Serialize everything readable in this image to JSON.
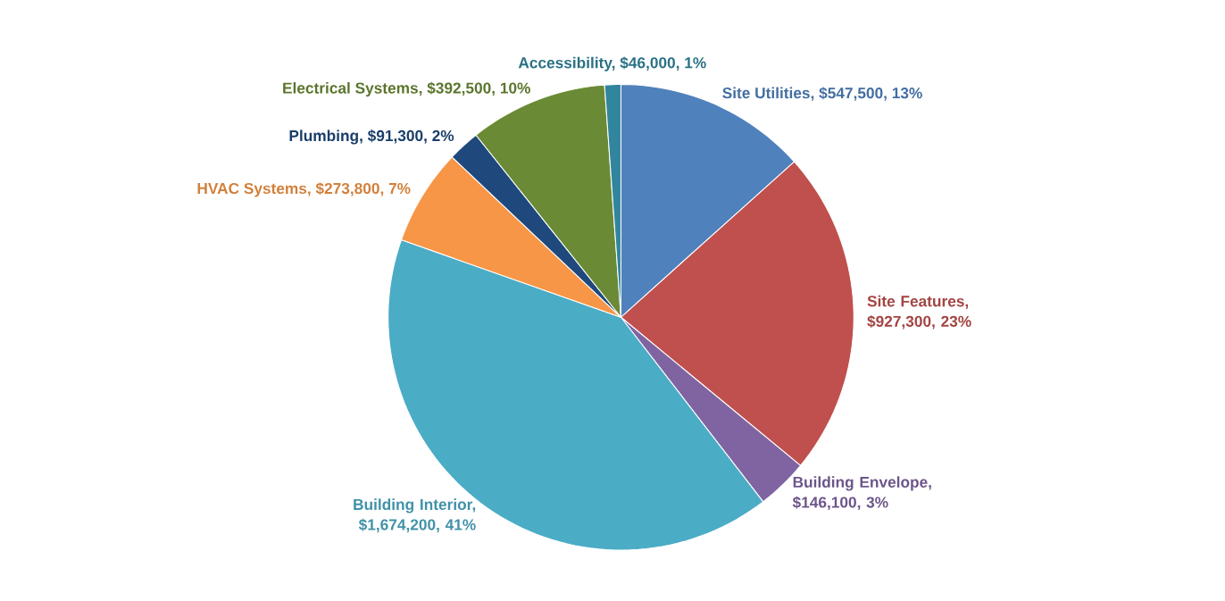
{
  "chart_data": {
    "type": "pie",
    "categories": [
      "Site Utilities, $547,500, 13%",
      "Site Features, $927,300, 23%",
      "Building Envelope, $146,100, 3%",
      "Building Interior, $1,674,200, 41%",
      "HVAC Systems, $273,800, 7%",
      "Plumbing, $91,300, 2%",
      "Electrical Systems, $392,500, 10%",
      "Accessibility, $46,000, 1%"
    ],
    "values": [
      547500,
      927300,
      146100,
      1674200,
      273800,
      91300,
      392500,
      46000
    ],
    "colors": [
      "#4f81bd",
      "#c0504d",
      "#8064a2",
      "#4bacc6",
      "#f79646",
      "#1f497d",
      "#6b8a35",
      "#31859c"
    ]
  }
}
